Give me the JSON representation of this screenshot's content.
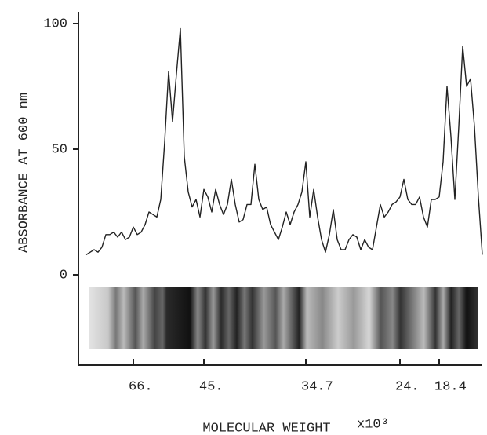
{
  "chart_data": {
    "type": "line",
    "y_label": "ABSORBANCE  AT  600 nm",
    "x_label": "MOLECULAR  WEIGHT",
    "x_unit": "x10³",
    "color": "#222222",
    "categories": [
      null,
      null,
      null,
      null,
      null,
      null,
      null,
      null,
      null,
      null,
      null,
      null,
      "66.",
      null,
      null,
      null,
      null,
      null,
      null,
      null,
      null,
      null,
      null,
      null,
      null,
      null,
      null,
      null,
      null,
      null,
      "45.",
      null,
      null,
      null,
      null,
      null,
      null,
      null,
      null,
      null,
      null,
      null,
      null,
      null,
      null,
      null,
      null,
      null,
      null,
      null,
      null,
      null,
      null,
      null,
      null,
      null,
      "34.7",
      null,
      null,
      null,
      null,
      null,
      null,
      null,
      null,
      null,
      null,
      null,
      null,
      null,
      null,
      null,
      null,
      null,
      null,
      null,
      null,
      null,
      null,
      null,
      "24.",
      null,
      null,
      null,
      null,
      null,
      null,
      null,
      null,
      null,
      "18.4",
      null,
      null,
      null,
      null,
      null,
      null,
      null,
      null,
      null,
      null,
      null
    ],
    "values": [
      8,
      9,
      10,
      9,
      11,
      16,
      16,
      17,
      15,
      17,
      14,
      15,
      19,
      16,
      17,
      20,
      25,
      24,
      23,
      30,
      53,
      81,
      61,
      80,
      98,
      47,
      33,
      27,
      30,
      23,
      34,
      31,
      25,
      34,
      28,
      24,
      28,
      38,
      28,
      21,
      22,
      28,
      28,
      44,
      30,
      26,
      27,
      20,
      17,
      14,
      19,
      25,
      20,
      25,
      28,
      33,
      45,
      23,
      34,
      23,
      14,
      9,
      16,
      26,
      14,
      10,
      10,
      14,
      16,
      15,
      10,
      14,
      11,
      10,
      19,
      28,
      23,
      25,
      28,
      29,
      31,
      38,
      30,
      28,
      28,
      31,
      23,
      19,
      30,
      30,
      31,
      45,
      75,
      55,
      30,
      59,
      91,
      75,
      78,
      59,
      31,
      8
    ],
    "ylim": [
      0,
      100
    ],
    "yticks": [
      0,
      50,
      100
    ]
  }
}
